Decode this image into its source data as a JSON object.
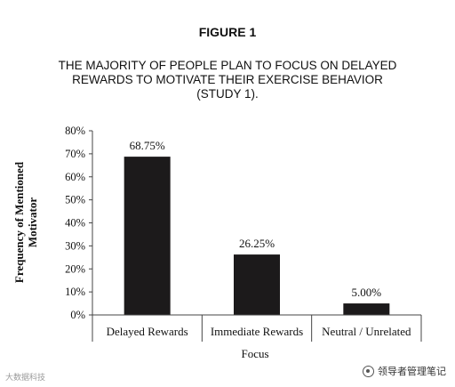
{
  "figure_label": "FIGURE 1",
  "title_lines": [
    "THE MAJORITY OF PEOPLE PLAN TO FOCUS ON DELAYED",
    "REWARDS TO MOTIVATE THEIR EXERCISE BEHAVIOR",
    "(STUDY 1)."
  ],
  "watermark_left": "大数据科技",
  "watermark_right": "领导者管理笔记",
  "chart_data": {
    "type": "bar",
    "title": "THE MAJORITY OF PEOPLE PLAN TO FOCUS ON DELAYED REWARDS TO MOTIVATE THEIR EXERCISE BEHAVIOR (STUDY 1).",
    "categories": [
      "Delayed Rewards",
      "Immediate Rewards",
      "Neutral / Unrelated"
    ],
    "values": [
      68.75,
      26.25,
      5.0
    ],
    "value_labels": [
      "68.75%",
      "26.25%",
      "5.00%"
    ],
    "xlabel": "Focus",
    "ylabel_lines": [
      "Frequency of Mentioned",
      "Motivator"
    ],
    "ylim": [
      0,
      80
    ],
    "yticks": [
      0,
      10,
      20,
      30,
      40,
      50,
      60,
      70,
      80
    ],
    "ytick_labels": [
      "0%",
      "10%",
      "20%",
      "30%",
      "40%",
      "50%",
      "60%",
      "70%",
      "80%"
    ],
    "grid": false,
    "legend": "none",
    "bar_color": "#1c1a1b"
  }
}
